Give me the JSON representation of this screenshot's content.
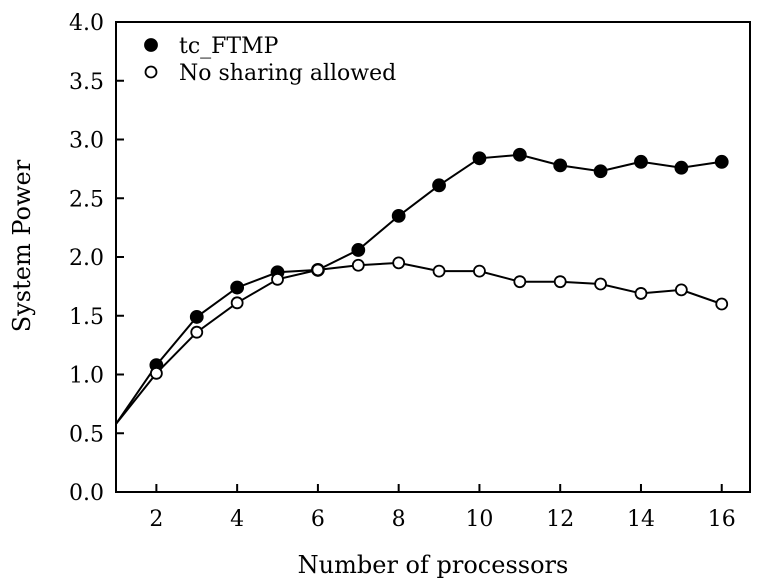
{
  "chart_data": {
    "type": "line",
    "xlabel": "Number of processors",
    "ylabel": "System Power",
    "xlim": [
      1,
      16.7
    ],
    "ylim": [
      0,
      4
    ],
    "xticks": [
      2,
      4,
      6,
      8,
      10,
      12,
      14,
      16
    ],
    "yticks": [
      "0.0",
      "0.5",
      "1.0",
      "1.5",
      "2.0",
      "2.5",
      "3.0",
      "3.5",
      "4.0"
    ],
    "grid": false,
    "legend_position": "top-left",
    "series": [
      {
        "name": "tc_FTMP",
        "marker": "filled-circle",
        "x": [
          1,
          2,
          3,
          4,
          5,
          6,
          7,
          8,
          9,
          10,
          11,
          12,
          13,
          14,
          15,
          16
        ],
        "y": [
          0.58,
          1.08,
          1.49,
          1.74,
          1.87,
          1.89,
          2.06,
          2.35,
          2.61,
          2.84,
          2.87,
          2.78,
          2.73,
          2.81,
          2.76,
          2.81
        ],
        "marked": [
          false,
          true,
          true,
          true,
          true,
          true,
          true,
          true,
          true,
          true,
          true,
          true,
          true,
          true,
          true,
          true
        ]
      },
      {
        "name": "No sharing allowed",
        "marker": "open-circle",
        "x": [
          1,
          2,
          3,
          4,
          5,
          6,
          7,
          8,
          9,
          10,
          11,
          12,
          13,
          14,
          15,
          16
        ],
        "y": [
          0.58,
          1.01,
          1.36,
          1.61,
          1.81,
          1.89,
          1.93,
          1.95,
          1.88,
          1.88,
          1.79,
          1.79,
          1.77,
          1.69,
          1.72,
          1.6
        ],
        "marked": [
          false,
          true,
          true,
          true,
          true,
          true,
          true,
          true,
          true,
          true,
          true,
          true,
          true,
          true,
          true,
          true
        ]
      }
    ]
  }
}
